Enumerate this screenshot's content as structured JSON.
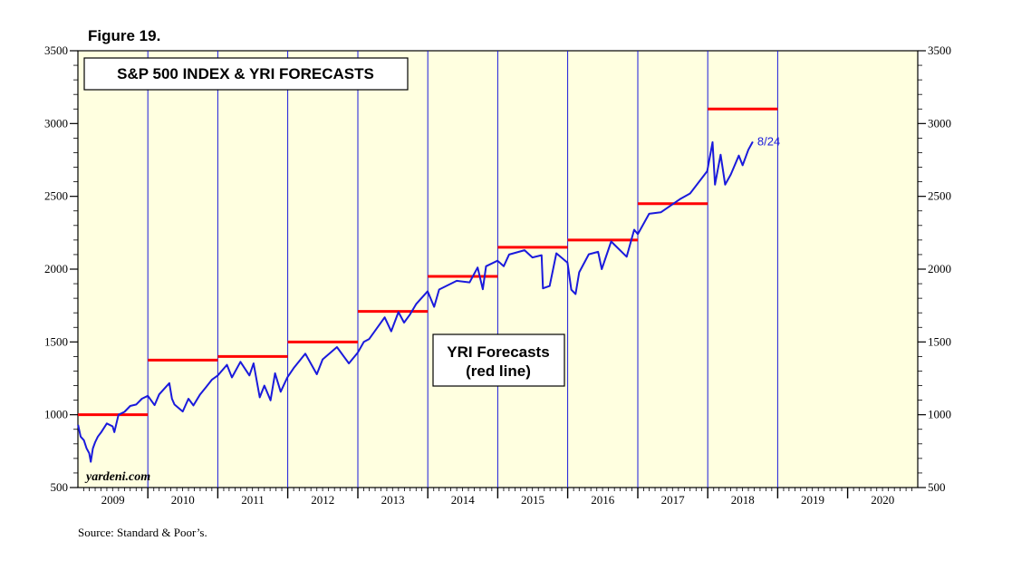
{
  "figure_label": "Figure 19.",
  "source": "Source: Standard & Poor’s.",
  "watermark": "yardeni.com",
  "colors": {
    "plot_background": "#ffffe0",
    "index_line": "#1a1adc",
    "forecast_line": "#ff0000",
    "year_gridline": "#1a1adc",
    "end_label": "#1a1adc"
  },
  "chart_data": {
    "type": "line",
    "title": "S&P 500 INDEX & YRI FORECASTS",
    "annotation": "YRI Forecasts\n(red line)",
    "end_label": "8/24",
    "x_range": [
      "2009-01-01",
      "2021-01-01"
    ],
    "x_tick_labels": [
      "2009",
      "2010",
      "2011",
      "2012",
      "2013",
      "2014",
      "2015",
      "2016",
      "2017",
      "2018",
      "2019",
      "2020"
    ],
    "ylim": [
      500,
      3500
    ],
    "y_ticks": [
      500,
      1000,
      1500,
      2000,
      2500,
      3000,
      3500
    ],
    "y_axes": [
      "left",
      "right"
    ],
    "grid": "vertical lines at each year boundary",
    "series": [
      {
        "role": "S&P 500 index",
        "x": [
          "2009-01-02",
          "2009-01-15",
          "2009-02-01",
          "2009-02-15",
          "2009-03-01",
          "2009-03-09",
          "2009-03-20",
          "2009-04-01",
          "2009-04-15",
          "2009-05-01",
          "2009-06-01",
          "2009-07-01",
          "2009-07-10",
          "2009-08-01",
          "2009-09-01",
          "2009-10-01",
          "2009-11-01",
          "2009-12-01",
          "2010-01-01",
          "2010-02-05",
          "2010-03-01",
          "2010-04-23",
          "2010-05-07",
          "2010-05-20",
          "2010-06-07",
          "2010-07-02",
          "2010-08-01",
          "2010-08-27",
          "2010-10-01",
          "2010-11-01",
          "2010-12-01",
          "2011-01-01",
          "2011-02-18",
          "2011-03-16",
          "2011-04-29",
          "2011-06-15",
          "2011-07-07",
          "2011-08-08",
          "2011-09-01",
          "2011-10-03",
          "2011-10-27",
          "2011-11-25",
          "2011-12-30",
          "2012-02-01",
          "2012-04-02",
          "2012-06-01",
          "2012-07-01",
          "2012-09-14",
          "2012-11-15",
          "2012-12-31",
          "2013-02-01",
          "2013-03-01",
          "2013-05-21",
          "2013-06-24",
          "2013-08-01",
          "2013-08-30",
          "2013-10-01",
          "2013-11-01",
          "2013-12-31",
          "2014-02-03",
          "2014-03-01",
          "2014-06-01",
          "2014-08-07",
          "2014-09-18",
          "2014-10-15",
          "2014-11-01",
          "2014-12-31",
          "2015-02-01",
          "2015-03-01",
          "2015-05-21",
          "2015-07-01",
          "2015-08-18",
          "2015-08-25",
          "2015-09-29",
          "2015-11-03",
          "2015-12-31",
          "2016-01-20",
          "2016-02-11",
          "2016-03-01",
          "2016-04-20",
          "2016-06-08",
          "2016-06-27",
          "2016-08-15",
          "2016-11-04",
          "2016-12-13",
          "2017-01-01",
          "2017-03-01",
          "2017-05-01",
          "2017-08-08",
          "2017-10-01",
          "2017-12-29",
          "2018-01-26",
          "2018-02-08",
          "2018-03-09",
          "2018-04-02",
          "2018-05-01",
          "2018-06-12",
          "2018-07-02",
          "2018-08-01",
          "2018-08-24"
        ],
        "values": [
          931,
          850,
          825,
          770,
          735,
          677,
          768,
          811,
          850,
          877,
          940,
          920,
          880,
          1000,
          1020,
          1060,
          1070,
          1110,
          1130,
          1066,
          1140,
          1217,
          1110,
          1070,
          1050,
          1022,
          1110,
          1064,
          1140,
          1190,
          1240,
          1270,
          1343,
          1256,
          1363,
          1270,
          1353,
          1119,
          1200,
          1099,
          1285,
          1158,
          1257,
          1320,
          1419,
          1278,
          1380,
          1465,
          1353,
          1426,
          1500,
          1520,
          1669,
          1573,
          1705,
          1633,
          1690,
          1760,
          1848,
          1741,
          1860,
          1920,
          1909,
          2011,
          1862,
          2020,
          2058,
          2020,
          2100,
          2130,
          2080,
          2096,
          1868,
          1884,
          2109,
          2044,
          1859,
          1829,
          1978,
          2102,
          2119,
          2000,
          2190,
          2085,
          2271,
          2240,
          2380,
          2390,
          2480,
          2520,
          2673,
          2872,
          2581,
          2786,
          2581,
          2650,
          2780,
          2713,
          2820,
          2875
        ]
      },
      {
        "role": "YRI forecasts",
        "segments": [
          {
            "year": "2009",
            "value": 1000
          },
          {
            "year": "2010",
            "value": 1375
          },
          {
            "year": "2011",
            "value": 1400
          },
          {
            "year": "2012",
            "value": 1500
          },
          {
            "year": "2013",
            "value": 1710
          },
          {
            "year": "2014",
            "value": 1950
          },
          {
            "year": "2015",
            "value": 2150
          },
          {
            "year": "2016",
            "value": 2200
          },
          {
            "year": "2017",
            "value": 2450
          },
          {
            "year": "2018",
            "value": 3100
          }
        ]
      }
    ]
  }
}
